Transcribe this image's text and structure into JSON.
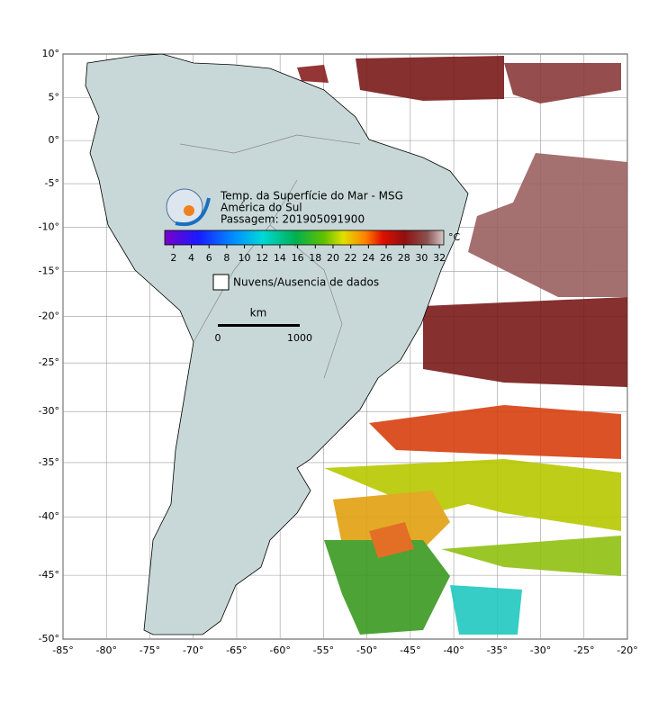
{
  "map": {
    "xticks": [
      {
        "value": -85,
        "label": "-85°"
      },
      {
        "value": -80,
        "label": "-80°"
      },
      {
        "value": -75,
        "label": "-75°"
      },
      {
        "value": -70,
        "label": "-70°"
      },
      {
        "value": -65,
        "label": "-65°"
      },
      {
        "value": -60,
        "label": "-60°"
      },
      {
        "value": -55,
        "label": "-55°"
      },
      {
        "value": -50,
        "label": "-50°"
      },
      {
        "value": -45,
        "label": "-45°"
      },
      {
        "value": -40,
        "label": "-40°"
      },
      {
        "value": -35,
        "label": "-35°"
      },
      {
        "value": -30,
        "label": "-30°"
      },
      {
        "value": -25,
        "label": "-25°"
      },
      {
        "value": -20,
        "label": "-20°"
      }
    ],
    "yticks": [
      {
        "value": 10,
        "label": "10°"
      },
      {
        "value": 5,
        "label": "5°"
      },
      {
        "value": 0,
        "label": "0°"
      },
      {
        "value": -5,
        "label": "-5°"
      },
      {
        "value": -10,
        "label": "-10°"
      },
      {
        "value": -15,
        "label": "-15°"
      },
      {
        "value": -20,
        "label": "-20°"
      },
      {
        "value": -25,
        "label": "-25°"
      },
      {
        "value": -30,
        "label": "-30°"
      },
      {
        "value": -35,
        "label": "-35°"
      },
      {
        "value": -40,
        "label": "-40°"
      },
      {
        "value": -45,
        "label": "-45°"
      },
      {
        "value": -50,
        "label": "-50°"
      }
    ],
    "title": [
      "Temp. da Superfície do Mar - MSG",
      "América do Sul",
      "Passagem: 201905091900"
    ],
    "colorbar": {
      "unit": "°C",
      "lim": [
        1,
        32.5
      ],
      "ticks": [
        2,
        4,
        6,
        8,
        10,
        12,
        14,
        16,
        18,
        20,
        22,
        24,
        26,
        28,
        30,
        32
      ]
    },
    "legend": "Nuvens/Ausencia de dados",
    "scale": {
      "unit": "km",
      "labels": [
        "0",
        "1000"
      ]
    }
  }
}
